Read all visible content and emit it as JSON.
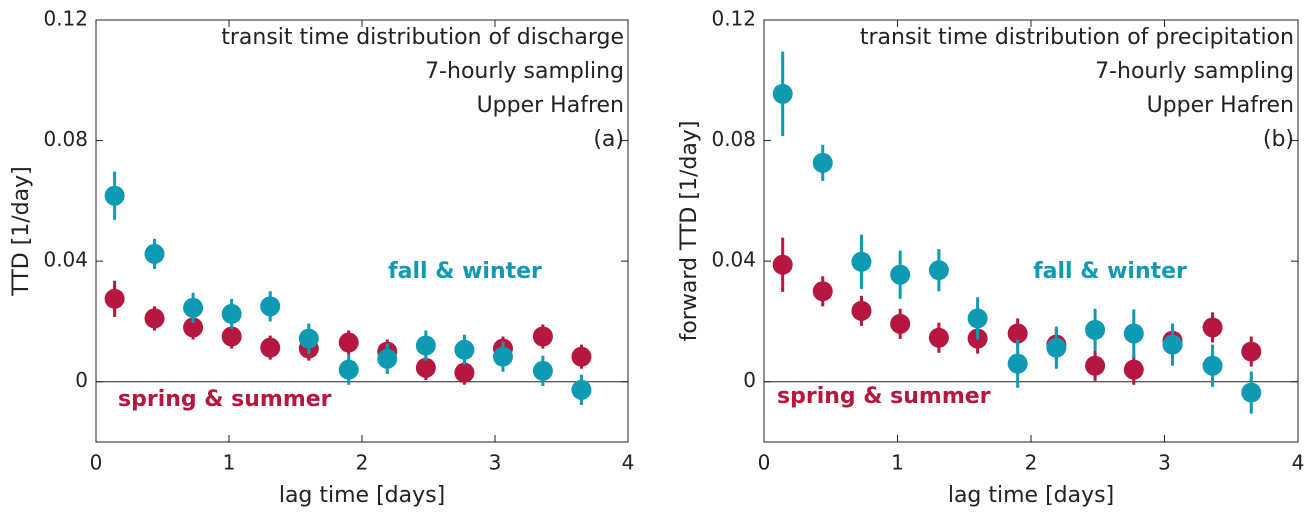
{
  "chart_data": [
    {
      "type": "scatter",
      "xlabel": "lag time [days]",
      "ylabel": "TTD [1/day]",
      "annotations": [
        "transit time distribution of discharge",
        "7-hourly sampling",
        "Upper Hafren",
        "(a)"
      ],
      "xlim": [
        0,
        4
      ],
      "xticks": [
        0,
        1,
        2,
        3,
        4
      ],
      "ylim": [
        -0.02,
        0.12
      ],
      "yticks": [
        0,
        0.04,
        0.08,
        0.12
      ],
      "x": [
        0.14,
        0.44,
        0.73,
        1.02,
        1.31,
        1.6,
        1.9,
        2.19,
        2.48,
        2.77,
        3.06,
        3.36,
        3.65
      ],
      "series": [
        {
          "name": "fall & winter",
          "color": "#0f9ab3",
          "values": [
            0.0617,
            0.0424,
            0.0245,
            0.0225,
            0.025,
            0.0143,
            0.004,
            0.0076,
            0.012,
            0.0106,
            0.0083,
            0.0036,
            -0.0027
          ],
          "errors": [
            0.008,
            0.005,
            0.005,
            0.005,
            0.005,
            0.005,
            0.005,
            0.005,
            0.005,
            0.005,
            0.005,
            0.005,
            0.005
          ]
        },
        {
          "name": "spring & summer",
          "color": "#b5173e",
          "values": [
            0.0275,
            0.021,
            0.018,
            0.015,
            0.0113,
            0.011,
            0.013,
            0.01,
            0.0046,
            0.003,
            0.011,
            0.015,
            0.0083
          ],
          "errors": [
            0.006,
            0.004,
            0.004,
            0.004,
            0.004,
            0.004,
            0.004,
            0.004,
            0.004,
            0.004,
            0.004,
            0.004,
            0.004
          ]
        }
      ]
    },
    {
      "type": "scatter",
      "xlabel": "lag time [days]",
      "ylabel": "forward TTD [1/day]",
      "annotations": [
        "transit time distribution of precipitation",
        "7-hourly sampling",
        "Upper Hafren",
        "(b)"
      ],
      "xlim": [
        0,
        4
      ],
      "xticks": [
        0,
        1,
        2,
        3,
        4
      ],
      "ylim": [
        -0.02,
        0.12
      ],
      "yticks": [
        0,
        0.04,
        0.08,
        0.12
      ],
      "x": [
        0.14,
        0.44,
        0.73,
        1.02,
        1.31,
        1.6,
        1.9,
        2.19,
        2.48,
        2.77,
        3.06,
        3.36,
        3.65
      ],
      "series": [
        {
          "name": "fall & winter",
          "color": "#0f9ab3",
          "values": [
            0.0955,
            0.0726,
            0.0398,
            0.0355,
            0.037,
            0.021,
            0.006,
            0.0113,
            0.0172,
            0.016,
            0.0123,
            0.0053,
            -0.0036
          ],
          "errors": [
            0.014,
            0.006,
            0.009,
            0.008,
            0.007,
            0.007,
            0.008,
            0.007,
            0.007,
            0.008,
            0.007,
            0.007,
            0.007
          ]
        },
        {
          "name": "spring & summer",
          "color": "#b5173e",
          "values": [
            0.0388,
            0.03,
            0.0235,
            0.0192,
            0.0146,
            0.0143,
            0.016,
            0.0123,
            0.0053,
            0.004,
            0.0136,
            0.018,
            0.01
          ],
          "errors": [
            0.009,
            0.005,
            0.005,
            0.005,
            0.005,
            0.005,
            0.005,
            0.005,
            0.005,
            0.005,
            0.005,
            0.005,
            0.005
          ]
        }
      ]
    }
  ]
}
